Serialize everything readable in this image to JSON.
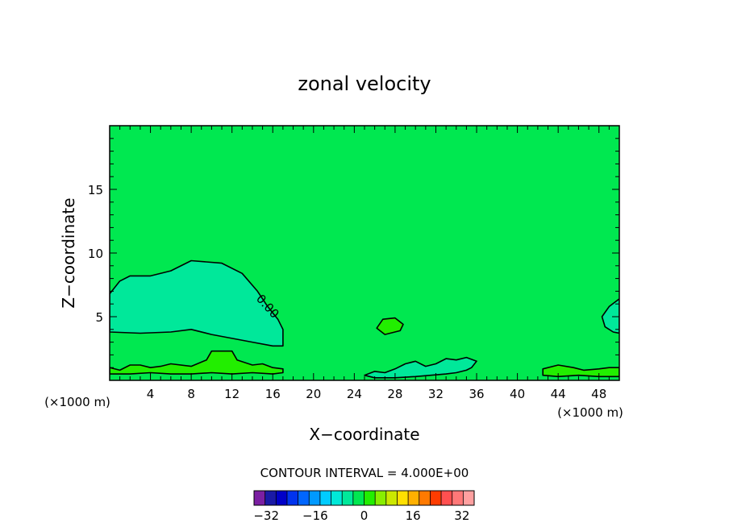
{
  "chart_data": {
    "type": "heatmap",
    "title": "zonal velocity",
    "xlabel": "X−coordinate",
    "ylabel": "Z−coordinate",
    "x_unit": "(×1000 m)",
    "z_unit": "(×1000 m)",
    "xlim": [
      0,
      50
    ],
    "ylim": [
      0,
      20
    ],
    "xticks": [
      4,
      8,
      12,
      16,
      20,
      24,
      28,
      32,
      36,
      40,
      44,
      48
    ],
    "xtick_labels": [
      "4",
      "8",
      "12",
      "16",
      "20",
      "24",
      "28",
      "32",
      "36",
      "40",
      "44",
      "48"
    ],
    "yticks": [
      5,
      10,
      15
    ],
    "ytick_labels": [
      "5",
      "10",
      "15"
    ],
    "contour_label": "0.00",
    "contour_interval_text": "CONTOUR INTERVAL = 4.000E+00",
    "colorbar": {
      "min": -36,
      "max": 36,
      "interval": 4,
      "colors": [
        "#7b1fa2",
        "#1a1aa6",
        "#0000c8",
        "#0033ee",
        "#0066ff",
        "#0099ff",
        "#00ccff",
        "#00e8d8",
        "#00e89a",
        "#00e850",
        "#22ee00",
        "#88ee00",
        "#cce800",
        "#ffe000",
        "#ffb000",
        "#ff7a00",
        "#ff3c00",
        "#ff5050",
        "#ff7878",
        "#ffa0a0"
      ],
      "tick_values": [
        -32,
        -16,
        0,
        16,
        32
      ],
      "tick_labels": [
        "−32",
        "−16",
        "0",
        "16",
        "32"
      ]
    },
    "background_value_range": [
      0,
      4
    ],
    "regions": [
      {
        "name": "negative-jet-west",
        "value_range": [
          -4,
          0
        ],
        "boundary": [
          [
            0,
            3.8
          ],
          [
            3,
            3.7
          ],
          [
            6,
            3.8
          ],
          [
            8,
            4.0
          ],
          [
            10,
            3.6
          ],
          [
            12,
            3.3
          ],
          [
            14,
            3.0
          ],
          [
            16,
            2.7
          ],
          [
            17,
            2.7
          ],
          [
            17,
            4.0
          ],
          [
            16.5,
            4.8
          ],
          [
            15.5,
            5.8
          ],
          [
            14.5,
            7.0
          ],
          [
            13,
            8.4
          ],
          [
            11,
            9.2
          ],
          [
            8,
            9.4
          ],
          [
            6,
            8.6
          ],
          [
            4,
            8.2
          ],
          [
            2,
            8.2
          ],
          [
            1,
            7.8
          ],
          [
            0,
            6.8
          ]
        ]
      },
      {
        "name": "negative-blob-east",
        "value_range": [
          -4,
          0
        ],
        "boundary": [
          [
            50,
            6.4
          ],
          [
            49,
            5.8
          ],
          [
            48.3,
            5.0
          ],
          [
            48.6,
            4.2
          ],
          [
            49.4,
            3.8
          ],
          [
            50,
            3.7
          ]
        ]
      },
      {
        "name": "positive-blob-28",
        "value_range": [
          4,
          8
        ],
        "boundary": [
          [
            26.2,
            4.1
          ],
          [
            26.8,
            4.8
          ],
          [
            28,
            4.9
          ],
          [
            28.8,
            4.4
          ],
          [
            28.5,
            3.9
          ],
          [
            27,
            3.6
          ]
        ]
      },
      {
        "name": "positive-band-surface",
        "value_range": [
          4,
          8
        ],
        "boundary": [
          [
            0,
            1.0
          ],
          [
            1,
            0.8
          ],
          [
            2,
            1.2
          ],
          [
            3,
            1.2
          ],
          [
            4,
            1.0
          ],
          [
            5,
            1.1
          ],
          [
            6,
            1.3
          ],
          [
            8,
            1.1
          ],
          [
            9.5,
            1.6
          ],
          [
            10,
            2.3
          ],
          [
            12,
            2.3
          ],
          [
            12.5,
            1.6
          ],
          [
            14,
            1.2
          ],
          [
            15,
            1.3
          ],
          [
            16,
            1.0
          ],
          [
            17,
            0.9
          ],
          [
            17,
            0.6
          ],
          [
            16,
            0.5
          ],
          [
            14,
            0.6
          ],
          [
            12,
            0.5
          ],
          [
            10,
            0.6
          ],
          [
            8,
            0.5
          ],
          [
            6,
            0.5
          ],
          [
            4,
            0.6
          ],
          [
            2,
            0.5
          ],
          [
            0,
            0.5
          ]
        ]
      },
      {
        "name": "negative-surface-east",
        "value_range": [
          -4,
          0
        ],
        "boundary": [
          [
            25,
            0.4
          ],
          [
            26,
            0.7
          ],
          [
            27,
            0.6
          ],
          [
            28,
            0.9
          ],
          [
            29,
            1.3
          ],
          [
            30,
            1.5
          ],
          [
            31,
            1.1
          ],
          [
            32,
            1.3
          ],
          [
            33,
            1.7
          ],
          [
            34,
            1.6
          ],
          [
            35,
            1.8
          ],
          [
            36,
            1.5
          ],
          [
            35.5,
            1.0
          ],
          [
            35,
            0.8
          ],
          [
            34,
            0.6
          ],
          [
            33,
            0.5
          ],
          [
            30,
            0.3
          ],
          [
            28,
            0.2
          ],
          [
            26,
            0.2
          ]
        ]
      },
      {
        "name": "positive-surface-east",
        "value_range": [
          4,
          8
        ],
        "boundary": [
          [
            42.5,
            0.9
          ],
          [
            44,
            1.2
          ],
          [
            45.5,
            1.0
          ],
          [
            46.5,
            0.8
          ],
          [
            48,
            0.9
          ],
          [
            49,
            1.0
          ],
          [
            50,
            1.0
          ],
          [
            50,
            0.3
          ],
          [
            48,
            0.3
          ],
          [
            46,
            0.4
          ],
          [
            44,
            0.3
          ],
          [
            42.5,
            0.4
          ]
        ]
      }
    ],
    "zero_contour_label_position": [
      15.2,
      5.6
    ]
  }
}
